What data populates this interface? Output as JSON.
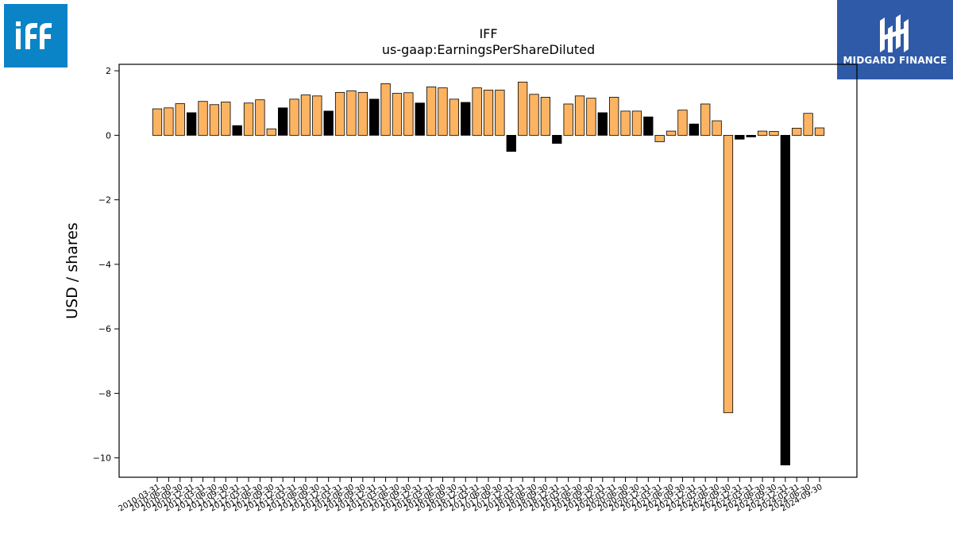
{
  "logos": {
    "left_text": "iff",
    "right_text": "MIDGARD FINANCE",
    "left_color": "#0a84c6",
    "right_color": "#2f5aa8"
  },
  "chart_data": {
    "type": "bar",
    "title": "IFF",
    "subtitle": "us-gaap:EarningsPerShareDiluted",
    "xlabel": "",
    "ylabel": "USD / shares",
    "ylim": [
      -10.6,
      2.2
    ],
    "yticks": [
      2,
      0,
      -2,
      -4,
      -6,
      -8,
      -10
    ],
    "ytick_labels": [
      "2",
      "0",
      "−2",
      "−4",
      "−6",
      "−8",
      "−10"
    ],
    "grid": false,
    "colors": {
      "orange": "#fdb462",
      "black": "#000000"
    },
    "categories": [
      "2010-03-31",
      "2010-06-30",
      "2010-09-30",
      "2010-12-31",
      "2011-03-31",
      "2011-06-30",
      "2011-09-30",
      "2011-12-31",
      "2012-03-31",
      "2012-06-30",
      "2012-09-30",
      "2012-12-31",
      "2013-03-31",
      "2013-06-30",
      "2013-09-30",
      "2013-12-31",
      "2014-03-31",
      "2014-06-30",
      "2014-09-30",
      "2014-12-31",
      "2015-03-31",
      "2015-06-30",
      "2015-09-30",
      "2015-12-31",
      "2016-03-31",
      "2016-06-30",
      "2016-09-30",
      "2016-12-31",
      "2017-03-31",
      "2017-06-30",
      "2017-09-30",
      "2017-12-31",
      "2018-03-31",
      "2018-06-30",
      "2018-09-30",
      "2018-12-31",
      "2019-03-31",
      "2019-06-30",
      "2019-09-30",
      "2019-12-31",
      "2020-03-31",
      "2020-06-30",
      "2020-09-30",
      "2020-12-31",
      "2021-03-31",
      "2021-06-30",
      "2021-09-30",
      "2021-12-31",
      "2022-03-31",
      "2022-06-30",
      "2022-09-30",
      "2022-12-31",
      "2023-03-31",
      "2023-06-30",
      "2023-09-30",
      "2023-12-31",
      "2024-03-31",
      "2024-06-30",
      "2024-09-30"
    ],
    "values": [
      0.82,
      0.85,
      0.98,
      0.7,
      1.05,
      0.95,
      1.03,
      0.3,
      1.0,
      1.1,
      0.2,
      0.85,
      1.12,
      1.25,
      1.22,
      0.75,
      1.33,
      1.38,
      1.33,
      1.12,
      1.6,
      1.3,
      1.32,
      1.0,
      1.5,
      1.47,
      1.12,
      1.02,
      1.47,
      1.4,
      1.4,
      -0.5,
      1.65,
      1.27,
      1.18,
      -0.25,
      0.97,
      1.22,
      1.15,
      0.7,
      1.18,
      0.75,
      0.75,
      0.57,
      -0.2,
      0.13,
      0.78,
      0.35,
      0.97,
      0.45,
      -8.6,
      -0.12,
      -0.05,
      0.13,
      0.12,
      -10.22,
      0.22,
      0.68,
      0.23
    ],
    "bar_colors": [
      "orange",
      "orange",
      "orange",
      "black",
      "orange",
      "orange",
      "orange",
      "black",
      "orange",
      "orange",
      "orange",
      "black",
      "orange",
      "orange",
      "orange",
      "black",
      "orange",
      "orange",
      "orange",
      "black",
      "orange",
      "orange",
      "orange",
      "black",
      "orange",
      "orange",
      "orange",
      "black",
      "orange",
      "orange",
      "orange",
      "black",
      "orange",
      "orange",
      "orange",
      "black",
      "orange",
      "orange",
      "orange",
      "black",
      "orange",
      "orange",
      "orange",
      "black",
      "orange",
      "orange",
      "orange",
      "black",
      "orange",
      "orange",
      "orange",
      "black",
      "black",
      "orange",
      "orange",
      "black",
      "orange",
      "orange",
      "orange"
    ]
  }
}
